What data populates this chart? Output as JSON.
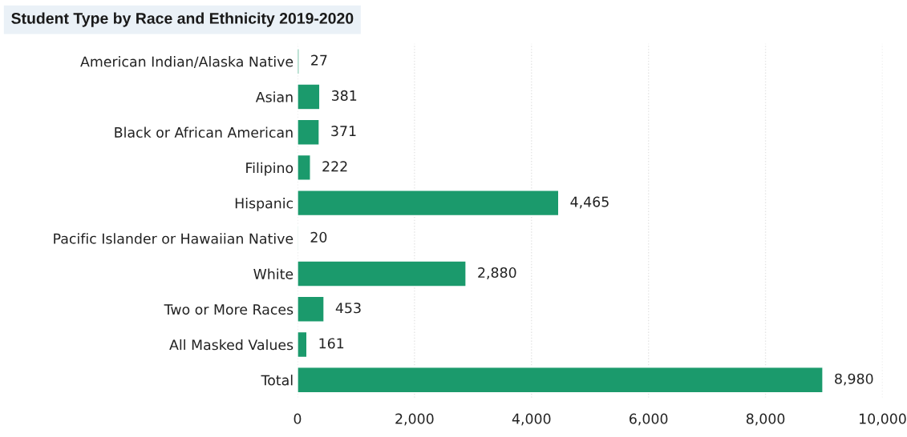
{
  "chart_data": {
    "type": "bar",
    "orientation": "horizontal",
    "title": "Student Type by Race and Ethnicity 2019-2020",
    "categories": [
      "American Indian/Alaska Native",
      "Asian",
      "Black or African American",
      "Filipino",
      "Hispanic",
      "Pacific Islander or Hawaiian Native",
      "White",
      "Two or More Races",
      "All Masked Values",
      "Total"
    ],
    "values": [
      27,
      381,
      371,
      222,
      4465,
      20,
      2880,
      453,
      161,
      8980
    ],
    "value_labels": [
      "27",
      "381",
      "371",
      "222",
      "4,465",
      "20",
      "2,880",
      "453",
      "161",
      "8,980"
    ],
    "color": "#1b9a6c",
    "xlim": [
      0,
      10000
    ],
    "xticks": [
      0,
      {
        "value": 2000,
        "label": "2,000"
      },
      {
        "value": 4000,
        "label": "4,000"
      },
      {
        "value": 6000,
        "label": "6,000"
      },
      {
        "value": 8000,
        "label": "8,000"
      },
      {
        "value": 10000,
        "label": "10,000"
      }
    ],
    "grid": "x"
  }
}
